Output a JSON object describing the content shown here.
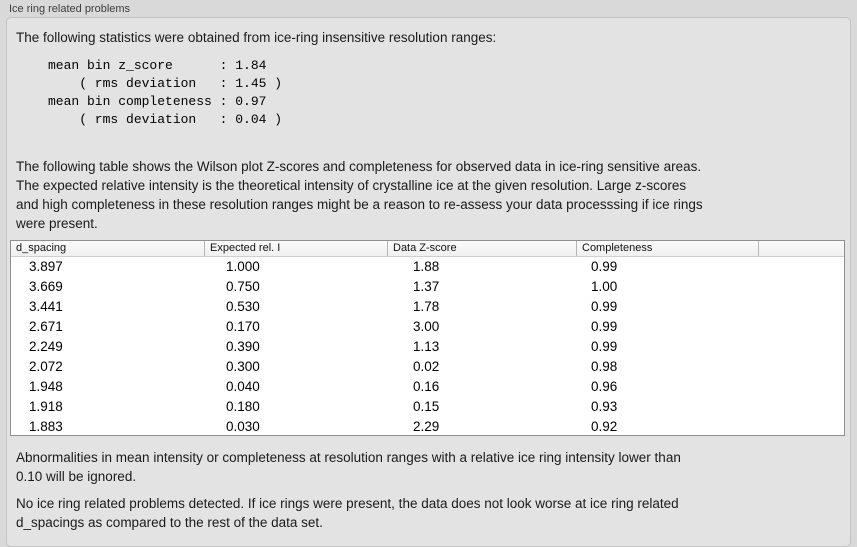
{
  "panel": {
    "title": "Ice ring related problems"
  },
  "intro": "The following statistics were obtained from ice-ring insensitive resolution ranges:",
  "stats_block": {
    "lines": [
      "mean bin z_score      : 1.84",
      "    ( rms deviation   : 1.45 )",
      "mean bin completeness : 0.97",
      "    ( rms deviation   : 0.04 )"
    ]
  },
  "description": {
    "lines": [
      "The following table shows the Wilson plot Z-scores and completeness for observed data in ice-ring sensitive areas.",
      "The expected relative intensity is the theoretical intensity of crystalline ice at the given resolution. Large z-scores",
      "and high completeness in these resolution ranges might be a reason to re-assess your data processsing if ice rings",
      "were present."
    ]
  },
  "table": {
    "columns": [
      "d_spacing",
      "Expected rel. I",
      "Data Z-score",
      "Completeness"
    ],
    "rows": [
      [
        "3.897",
        "1.000",
        "1.88",
        "0.99"
      ],
      [
        "3.669",
        "0.750",
        "1.37",
        "1.00"
      ],
      [
        "3.441",
        "0.530",
        "1.78",
        "0.99"
      ],
      [
        "2.671",
        "0.170",
        "3.00",
        "0.99"
      ],
      [
        "2.249",
        "0.390",
        "1.13",
        "0.99"
      ],
      [
        "2.072",
        "0.300",
        "0.02",
        "0.98"
      ],
      [
        "1.948",
        "0.040",
        "0.16",
        "0.96"
      ],
      [
        "1.918",
        "0.180",
        "0.15",
        "0.93"
      ],
      [
        "1.883",
        "0.030",
        "2.29",
        "0.92"
      ]
    ]
  },
  "note_ignore": {
    "lines": [
      "Abnormalities in mean intensity or completeness at resolution ranges with a relative ice ring intensity lower than",
      "0.10 will be ignored."
    ]
  },
  "conclusion": {
    "lines": [
      "No ice ring related problems detected. If ice rings were present, the data does not look worse at ice ring related",
      "d_spacings as compared to the rest of the data set."
    ]
  },
  "colors": {
    "page_bg": "#d9d9d9",
    "box_bg": "#e3e3e3",
    "box_border": "#c3c3c3",
    "table_bg": "#ffffff",
    "table_border": "#8f8f8f",
    "text": "#1a1a1a"
  }
}
